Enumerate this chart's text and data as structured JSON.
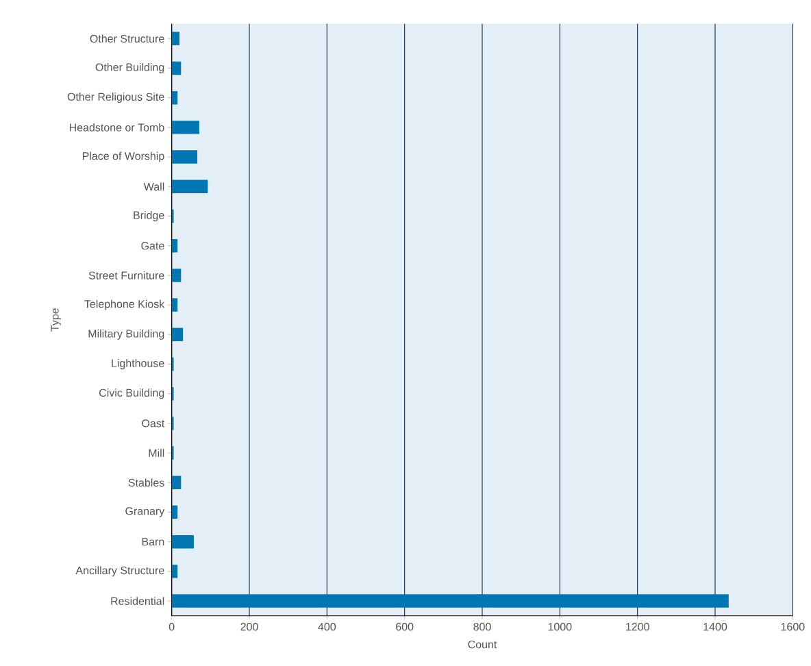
{
  "chart_data": {
    "type": "bar",
    "orientation": "horizontal",
    "xlabel": "Count",
    "ylabel": "Type",
    "categories": [
      "Other Structure",
      "Other Building",
      "Other Religious Site",
      "Headstone or Tomb",
      "Place of Worship",
      "Wall",
      "Bridge",
      "Gate",
      "Street Furniture",
      "Telephone Kiosk",
      "Military Building",
      "Lighthouse",
      "Civic Building",
      "Oast",
      "Mill",
      "Stables",
      "Granary",
      "Barn",
      "Ancillary Structure",
      "Residential"
    ],
    "values": [
      20,
      24,
      15,
      71,
      66,
      93,
      5,
      15,
      24,
      15,
      29,
      5,
      5,
      5,
      5,
      24,
      15,
      57,
      15,
      1435
    ],
    "color": "#0077b3",
    "xlim": [
      0,
      1600
    ],
    "xticks": [
      0,
      200,
      400,
      600,
      800,
      1000,
      1200,
      1400,
      1600
    ],
    "grid": "x"
  }
}
